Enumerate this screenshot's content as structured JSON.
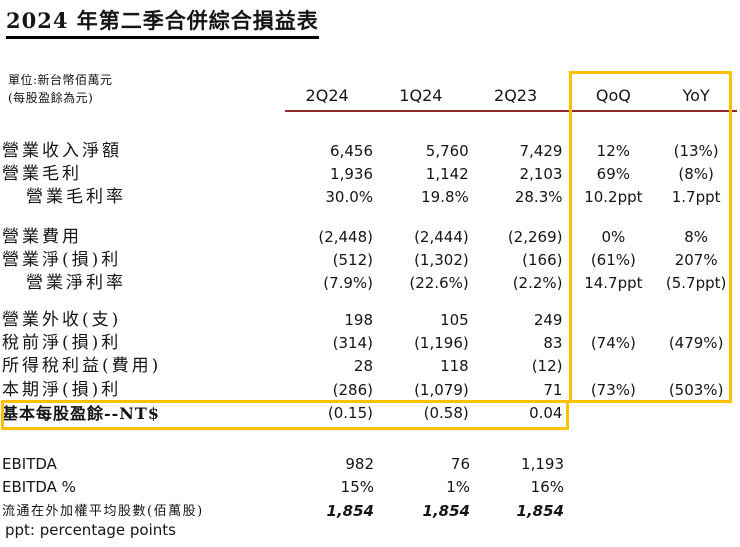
{
  "page": {
    "title": "2024 年第二季合併綜合損益表",
    "unit_note_line1": "單位:新台幣佰萬元",
    "unit_note_line2": "(每股盈餘為元)",
    "footnote": "ppt: percentage points"
  },
  "colors": {
    "highlight_box": "#FFC000",
    "header_rule": "#8E2B2B"
  },
  "table": {
    "columns": [
      "2Q24",
      "1Q24",
      "2Q23",
      "QoQ",
      "YoY"
    ],
    "rows": [
      {
        "label": "營業收入淨額",
        "v_2q24": "6,456",
        "v_1q24": "5,760",
        "v_2q23": "7,429",
        "qoq": "12%",
        "yoy": "(13%)"
      },
      {
        "label": "營業毛利",
        "v_2q24": "1,936",
        "v_1q24": "1,142",
        "v_2q23": "2,103",
        "qoq": "69%",
        "yoy": "(8%)"
      },
      {
        "label": "營業毛利率",
        "v_2q24": "30.0%",
        "v_1q24": "19.8%",
        "v_2q23": "28.3%",
        "qoq": "10.2ppt",
        "yoy": "1.7ppt"
      },
      {
        "label": "營業費用",
        "v_2q24": "(2,448)",
        "v_1q24": "(2,444)",
        "v_2q23": "(2,269)",
        "qoq": "0%",
        "yoy": "8%"
      },
      {
        "label": "營業淨(損)利",
        "v_2q24": "(512)",
        "v_1q24": "(1,302)",
        "v_2q23": "(166)",
        "qoq": "(61%)",
        "yoy": "207%"
      },
      {
        "label": "營業淨利率",
        "v_2q24": "(7.9%)",
        "v_1q24": "(22.6%)",
        "v_2q23": "(2.2%)",
        "qoq": "14.7ppt",
        "yoy": "(5.7ppt)"
      },
      {
        "label": "營業外收(支)",
        "v_2q24": "198",
        "v_1q24": "105",
        "v_2q23": "249",
        "qoq": "",
        "yoy": ""
      },
      {
        "label": "稅前淨(損)利",
        "v_2q24": "(314)",
        "v_1q24": "(1,196)",
        "v_2q23": "83",
        "qoq": "(74%)",
        "yoy": "(479%)"
      },
      {
        "label": "所得稅利益(費用)",
        "v_2q24": "28",
        "v_1q24": "118",
        "v_2q23": "(12)",
        "qoq": "",
        "yoy": ""
      },
      {
        "label": "本期淨(損)利",
        "v_2q24": "(286)",
        "v_1q24": "(1,079)",
        "v_2q23": "71",
        "qoq": "(73%)",
        "yoy": "(503%)"
      },
      {
        "label": "基本每股盈餘--NT$",
        "v_2q24": "(0.15)",
        "v_1q24": "(0.58)",
        "v_2q23": "0.04",
        "qoq": "",
        "yoy": ""
      }
    ],
    "bottom_rows": [
      {
        "label": "EBITDA",
        "v_2q24": "982",
        "v_1q24": "76",
        "v_2q23": "1,193"
      },
      {
        "label": "EBITDA %",
        "v_2q24": "15%",
        "v_1q24": "1%",
        "v_2q23": "16%"
      },
      {
        "label": "流通在外加權平均股數(佰萬股)",
        "v_2q24": "1,854",
        "v_1q24": "1,854",
        "v_2q23": "1,854"
      }
    ]
  }
}
